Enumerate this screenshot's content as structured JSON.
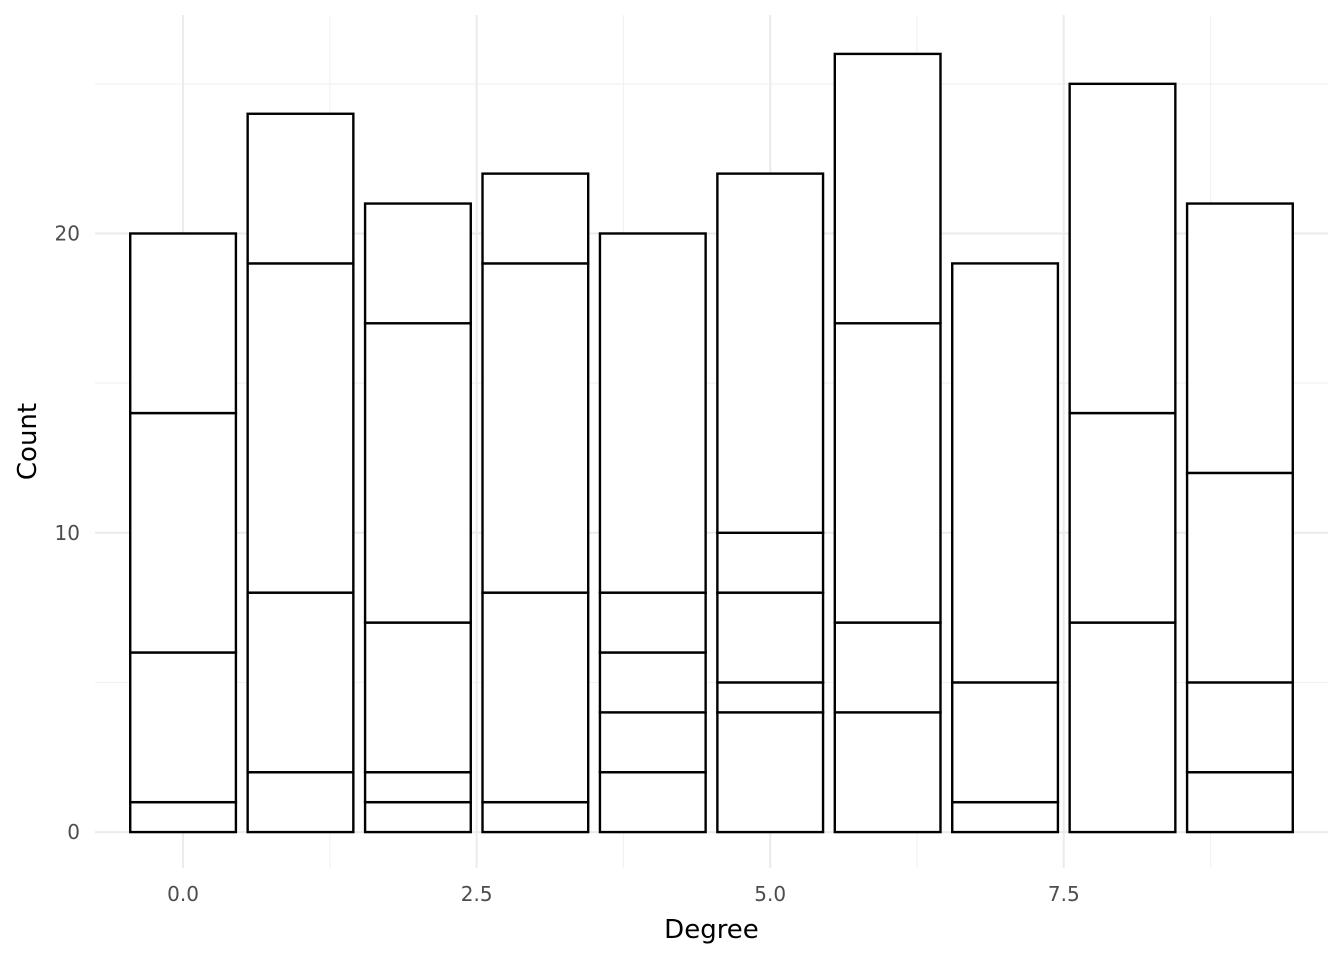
{
  "chart_data": {
    "type": "bar",
    "stacked": true,
    "xlabel": "Degree",
    "ylabel": "Count",
    "xlim": [
      -0.75,
      9.75
    ],
    "ylim": [
      -1.2,
      27.3
    ],
    "x_ticks": [
      0.0,
      2.5,
      5.0,
      7.5
    ],
    "x_tick_labels": [
      "0.0",
      "2.5",
      "5.0",
      "7.5"
    ],
    "y_ticks": [
      0,
      10,
      20
    ],
    "y_tick_labels": [
      "0",
      "10",
      "20"
    ],
    "grid": true,
    "fill_color": "#ffffff",
    "outline_color": "#000000",
    "bars": [
      {
        "x": 0,
        "segments": [
          1,
          5,
          8,
          6
        ]
      },
      {
        "x": 1,
        "segments": [
          2,
          6,
          11,
          5
        ]
      },
      {
        "x": 2,
        "segments": [
          1,
          1,
          5,
          10,
          4
        ]
      },
      {
        "x": 3,
        "segments": [
          1,
          7,
          11,
          3
        ]
      },
      {
        "x": 4,
        "segments": [
          2,
          2,
          2,
          2,
          12
        ]
      },
      {
        "x": 5,
        "segments": [
          4,
          1,
          3,
          2,
          12
        ]
      },
      {
        "x": 6,
        "segments": [
          4,
          3,
          10,
          9
        ]
      },
      {
        "x": 7,
        "segments": [
          1,
          4,
          14
        ]
      },
      {
        "x": 8,
        "segments": [
          7,
          7,
          11
        ]
      },
      {
        "x": 9,
        "segments": [
          2,
          3,
          7,
          9
        ]
      }
    ]
  }
}
